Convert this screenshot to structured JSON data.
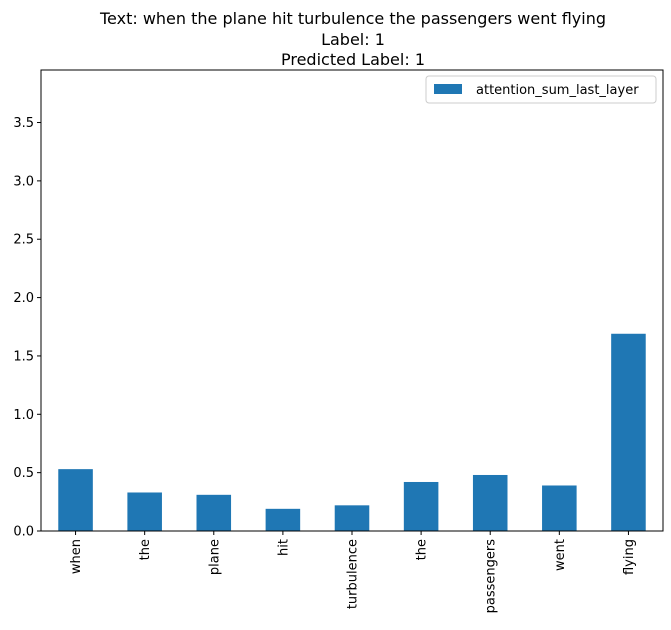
{
  "chart_data": {
    "type": "bar",
    "title_lines": [
      "Text: when the plane hit turbulence the passengers went flying",
      "Label: 1",
      "Predicted Label: 1"
    ],
    "categories": [
      "when",
      "the",
      "plane",
      "hit",
      "turbulence",
      "the",
      "passengers",
      "went",
      "flying"
    ],
    "series": [
      {
        "name": "attention_sum_last_layer",
        "color": "#1f77b4",
        "values": [
          0.53,
          0.33,
          0.31,
          0.19,
          0.22,
          0.42,
          0.48,
          0.39,
          1.69
        ]
      }
    ],
    "ylim": [
      0,
      3.95
    ],
    "yticks": [
      "0.0",
      "0.5",
      "1.0",
      "1.5",
      "2.0",
      "2.5",
      "3.0",
      "3.5"
    ],
    "xlabel": "",
    "ylabel": "",
    "legend_position": "top-right",
    "grid": false
  }
}
